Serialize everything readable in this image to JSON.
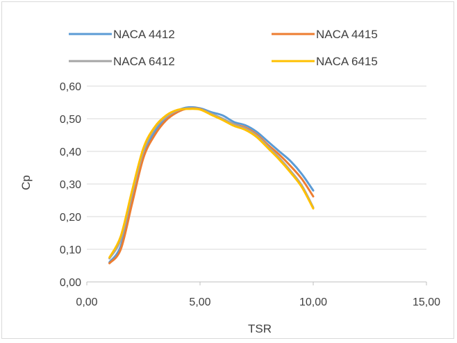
{
  "chart_data": {
    "type": "line",
    "xlabel": "TSR",
    "ylabel": "Cp",
    "xlim": [
      0,
      15
    ],
    "ylim": [
      0,
      0.6
    ],
    "x_ticks": [
      0,
      5,
      10,
      15
    ],
    "y_ticks": [
      0,
      0.1,
      0.2,
      0.3,
      0.4,
      0.5,
      0.6
    ],
    "x_tick_labels": [
      "0,00",
      "5,00",
      "10,00",
      "15,00"
    ],
    "y_tick_labels": [
      "0,00",
      "0,10",
      "0,20",
      "0,30",
      "0,40",
      "0,50",
      "0,60"
    ],
    "grid": "horizontal",
    "legend_position": "top",
    "series": [
      {
        "name": "NACA 4412",
        "color": "#5B9BD5",
        "points": [
          [
            1.0,
            0.06
          ],
          [
            1.5,
            0.11
          ],
          [
            2.0,
            0.25
          ],
          [
            2.5,
            0.39
          ],
          [
            3.0,
            0.46
          ],
          [
            3.5,
            0.5
          ],
          [
            4.0,
            0.525
          ],
          [
            4.5,
            0.535
          ],
          [
            5.0,
            0.532
          ],
          [
            5.5,
            0.52
          ],
          [
            6.0,
            0.51
          ],
          [
            6.5,
            0.49
          ],
          [
            7.0,
            0.48
          ],
          [
            7.5,
            0.46
          ],
          [
            8.0,
            0.43
          ],
          [
            8.5,
            0.4
          ],
          [
            9.0,
            0.37
          ],
          [
            9.5,
            0.33
          ],
          [
            10.0,
            0.28
          ]
        ]
      },
      {
        "name": "NACA 4415",
        "color": "#ED7D31",
        "points": [
          [
            1.0,
            0.057
          ],
          [
            1.5,
            0.1
          ],
          [
            2.0,
            0.24
          ],
          [
            2.5,
            0.38
          ],
          [
            3.0,
            0.45
          ],
          [
            3.5,
            0.495
          ],
          [
            4.0,
            0.52
          ],
          [
            4.5,
            0.532
          ],
          [
            5.0,
            0.53
          ],
          [
            5.5,
            0.515
          ],
          [
            6.0,
            0.5
          ],
          [
            6.5,
            0.483
          ],
          [
            7.0,
            0.473
          ],
          [
            7.5,
            0.452
          ],
          [
            8.0,
            0.42
          ],
          [
            8.5,
            0.39
          ],
          [
            9.0,
            0.355
          ],
          [
            9.5,
            0.315
          ],
          [
            10.0,
            0.262
          ]
        ]
      },
      {
        "name": "NACA 6412",
        "color": "#A5A5A5",
        "points": [
          [
            1.0,
            0.072
          ],
          [
            1.5,
            0.13
          ],
          [
            2.0,
            0.27
          ],
          [
            2.5,
            0.4
          ],
          [
            3.0,
            0.47
          ],
          [
            3.5,
            0.505
          ],
          [
            4.0,
            0.525
          ],
          [
            4.5,
            0.532
          ],
          [
            5.0,
            0.529
          ],
          [
            5.5,
            0.515
          ],
          [
            6.0,
            0.5
          ],
          [
            6.5,
            0.482
          ],
          [
            7.0,
            0.47
          ],
          [
            7.5,
            0.448
          ],
          [
            8.0,
            0.415
          ],
          [
            8.5,
            0.38
          ],
          [
            9.0,
            0.34
          ],
          [
            9.5,
            0.295
          ],
          [
            10.0,
            0.228
          ]
        ]
      },
      {
        "name": "NACA 6415",
        "color": "#FFC000",
        "points": [
          [
            1.0,
            0.075
          ],
          [
            1.5,
            0.14
          ],
          [
            2.0,
            0.28
          ],
          [
            2.5,
            0.41
          ],
          [
            3.0,
            0.475
          ],
          [
            3.5,
            0.51
          ],
          [
            4.0,
            0.527
          ],
          [
            4.5,
            0.53
          ],
          [
            5.0,
            0.528
          ],
          [
            5.5,
            0.512
          ],
          [
            6.0,
            0.496
          ],
          [
            6.5,
            0.478
          ],
          [
            7.0,
            0.466
          ],
          [
            7.5,
            0.444
          ],
          [
            8.0,
            0.41
          ],
          [
            8.5,
            0.375
          ],
          [
            9.0,
            0.335
          ],
          [
            9.5,
            0.29
          ],
          [
            10.0,
            0.225
          ]
        ]
      }
    ]
  }
}
